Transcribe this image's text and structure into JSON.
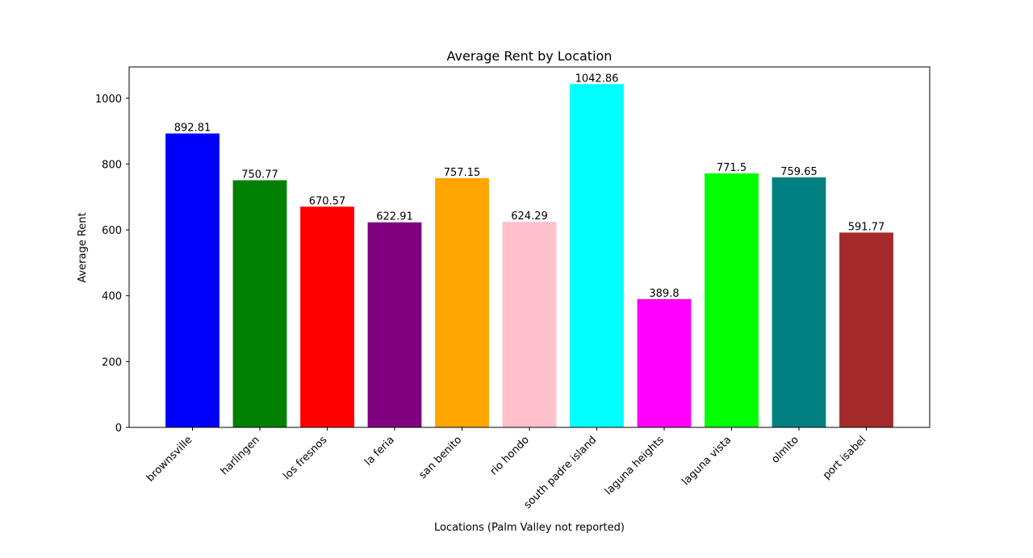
{
  "chart_data": {
    "type": "bar",
    "title": "Average Rent by Location",
    "xlabel": "Locations (Palm Valley not reported)",
    "ylabel": "Average Rent",
    "ylim": [
      0,
      1095
    ],
    "yticks": [
      0,
      200,
      400,
      600,
      800,
      1000
    ],
    "grid": false,
    "categories": [
      "brownsville",
      "harlingen",
      "los fresnos",
      "la feria",
      "san benito",
      "rio hondo",
      "south padre island",
      "laguna heights",
      "laguna vista",
      "olmito",
      "port isabel"
    ],
    "values": [
      892.81,
      750.77,
      670.57,
      622.91,
      757.15,
      624.29,
      1042.86,
      389.8,
      771.5,
      759.65,
      591.77
    ],
    "value_labels": [
      "892.81",
      "750.77",
      "670.57",
      "622.91",
      "757.15",
      "624.29",
      "1042.86",
      "389.8",
      "771.5",
      "759.65",
      "591.77"
    ],
    "colors": [
      "#0000ff",
      "#008000",
      "#ff0000",
      "#800080",
      "#ffa500",
      "#ffc0cb",
      "#00ffff",
      "#ff00ff",
      "#00ff00",
      "#008080",
      "#a52a2a"
    ]
  }
}
